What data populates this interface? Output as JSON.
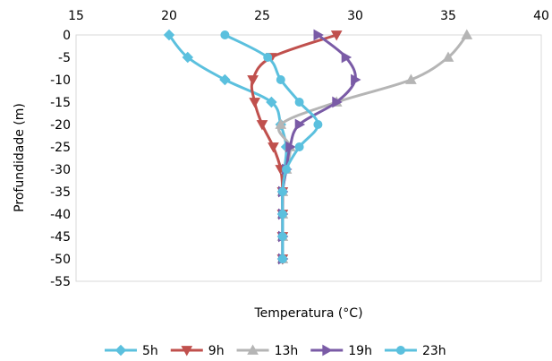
{
  "chart_data": {
    "type": "line",
    "title": "",
    "xlabel": "Temperatura (°C)",
    "ylabel": "Profundidade (m)",
    "xlim": [
      15,
      40
    ],
    "ylim": [
      -55,
      0
    ],
    "x_ticks": [
      15,
      20,
      25,
      30,
      35,
      40
    ],
    "x_tick_labels": [
      "15",
      "20",
      "25",
      "30",
      "35",
      "40"
    ],
    "y_ticks": [
      0,
      -5,
      -10,
      -15,
      -20,
      -25,
      -30,
      -35,
      -40,
      -45,
      -50,
      -55
    ],
    "y_tick_labels": [
      "0",
      "-5",
      "-10",
      "-15",
      "-20",
      "-25",
      "-30",
      "-35",
      "-40",
      "-45",
      "-50",
      "-55"
    ],
    "x_axis_position": "top",
    "grid": false,
    "legend_position": "bottom",
    "series": [
      {
        "name": "5h",
        "color": "#5bc0de",
        "marker": "diamond",
        "points": [
          [
            20.0,
            0
          ],
          [
            21.0,
            -5
          ],
          [
            23.0,
            -10
          ],
          [
            25.5,
            -15
          ],
          [
            26.0,
            -20
          ],
          [
            26.3,
            -25
          ],
          [
            26.2,
            -30
          ],
          [
            26.1,
            -35
          ],
          [
            26.1,
            -40
          ],
          [
            26.1,
            -45
          ],
          [
            26.1,
            -50
          ]
        ]
      },
      {
        "name": "9h",
        "color": "#c0504d",
        "marker": "triangle-down",
        "points": [
          [
            29.0,
            0
          ],
          [
            25.5,
            -5
          ],
          [
            24.5,
            -10
          ],
          [
            24.6,
            -15
          ],
          [
            25.0,
            -20
          ],
          [
            25.6,
            -25
          ],
          [
            26.0,
            -30
          ],
          [
            26.1,
            -35
          ],
          [
            26.1,
            -40
          ],
          [
            26.1,
            -45
          ],
          [
            26.1,
            -50
          ]
        ]
      },
      {
        "name": "13h",
        "color": "#b5b5b5",
        "marker": "triangle-up",
        "points": [
          [
            36.0,
            0
          ],
          [
            35.0,
            -5
          ],
          [
            33.0,
            -10
          ],
          [
            29.0,
            -15
          ],
          [
            26.0,
            -20
          ],
          [
            26.5,
            -25
          ],
          [
            26.3,
            -30
          ],
          [
            26.1,
            -35
          ],
          [
            26.1,
            -40
          ],
          [
            26.1,
            -45
          ],
          [
            26.1,
            -50
          ]
        ]
      },
      {
        "name": "19h",
        "color": "#7a5ba6",
        "marker": "triangle-right",
        "points": [
          [
            28.0,
            0
          ],
          [
            29.5,
            -5
          ],
          [
            30.0,
            -10
          ],
          [
            29.0,
            -15
          ],
          [
            27.0,
            -20
          ],
          [
            26.5,
            -25
          ],
          [
            26.3,
            -30
          ],
          [
            26.1,
            -35
          ],
          [
            26.1,
            -40
          ],
          [
            26.1,
            -45
          ],
          [
            26.1,
            -50
          ]
        ]
      },
      {
        "name": "23h",
        "color": "#5bc0de",
        "marker": "circle",
        "points": [
          [
            23.0,
            0
          ],
          [
            25.3,
            -5
          ],
          [
            26.0,
            -10
          ],
          [
            27.0,
            -15
          ],
          [
            28.0,
            -20
          ],
          [
            27.0,
            -25
          ],
          [
            26.3,
            -30
          ],
          [
            26.1,
            -35
          ],
          [
            26.1,
            -40
          ],
          [
            26.1,
            -45
          ],
          [
            26.1,
            -50
          ]
        ]
      }
    ]
  }
}
